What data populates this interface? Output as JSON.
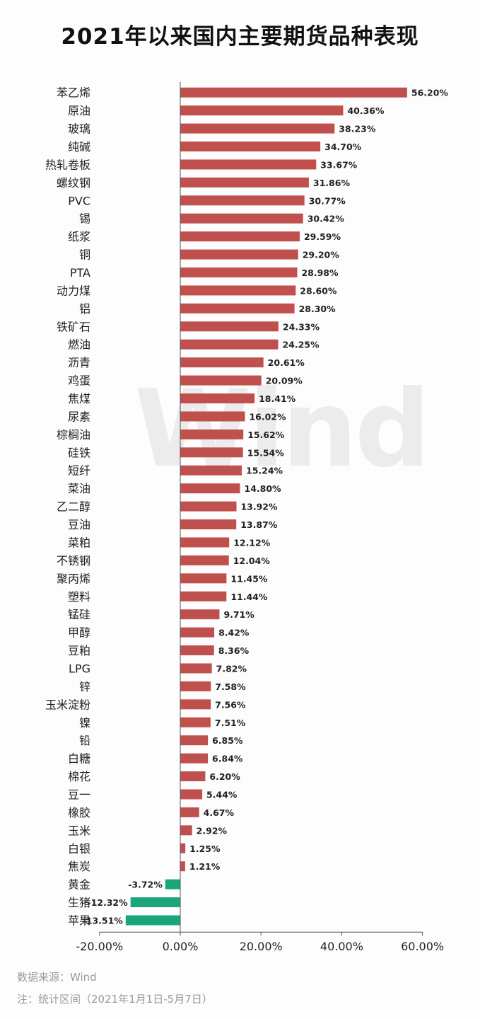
{
  "title": "2021年以来国内主要期货品种表现",
  "watermark": "Wind",
  "source_label": "数据来源：Wind",
  "note_label": "注：统计区间（2021年1月1日-5月7日）",
  "colors": {
    "positive": "#c0504d",
    "negative": "#1aa67a",
    "axis": "#555555",
    "text": "#222222"
  },
  "chart_data": {
    "type": "bar",
    "orientation": "horizontal",
    "title": "2021年以来国内主要期货品种表现",
    "xlabel": "",
    "ylabel": "",
    "xlim": [
      -20,
      60
    ],
    "xticks": [
      "-20.00%",
      "0.00%",
      "20.00%",
      "40.00%",
      "60.00%"
    ],
    "xtick_values": [
      -20,
      0,
      20,
      40,
      60
    ],
    "grid": false,
    "legend": "none",
    "categories": [
      "苯乙烯",
      "原油",
      "玻璃",
      "纯碱",
      "热轧卷板",
      "螺纹钢",
      "PVC",
      "锡",
      "纸浆",
      "铜",
      "PTA",
      "动力煤",
      "铝",
      "铁矿石",
      "燃油",
      "沥青",
      "鸡蛋",
      "焦煤",
      "尿素",
      "棕榈油",
      "硅铁",
      "短纤",
      "菜油",
      "乙二醇",
      "豆油",
      "菜粕",
      "不锈钢",
      "聚丙烯",
      "塑料",
      "锰硅",
      "甲醇",
      "豆粕",
      "LPG",
      "锌",
      "玉米淀粉",
      "镍",
      "铅",
      "白糖",
      "棉花",
      "豆一",
      "橡胶",
      "玉米",
      "白银",
      "焦炭",
      "黄金",
      "生猪",
      "苹果"
    ],
    "values": [
      56.2,
      40.36,
      38.23,
      34.7,
      33.67,
      31.86,
      30.77,
      30.42,
      29.59,
      29.2,
      28.98,
      28.6,
      28.3,
      24.33,
      24.25,
      20.61,
      20.09,
      18.41,
      16.02,
      15.62,
      15.54,
      15.24,
      14.8,
      13.92,
      13.87,
      12.12,
      12.04,
      11.45,
      11.44,
      9.71,
      8.42,
      8.36,
      7.82,
      7.58,
      7.56,
      7.51,
      6.85,
      6.84,
      6.2,
      5.44,
      4.67,
      2.92,
      1.25,
      1.21,
      -3.72,
      -12.32,
      -13.51
    ],
    "value_labels": [
      "56.20%",
      "40.36%",
      "38.23%",
      "34.70%",
      "33.67%",
      "31.86%",
      "30.77%",
      "30.42%",
      "29.59%",
      "29.20%",
      "28.98%",
      "28.60%",
      "28.30%",
      "24.33%",
      "24.25%",
      "20.61%",
      "20.09%",
      "18.41%",
      "16.02%",
      "15.62%",
      "15.54%",
      "15.24%",
      "14.80%",
      "13.92%",
      "13.87%",
      "12.12%",
      "12.04%",
      "11.45%",
      "11.44%",
      "9.71%",
      "8.42%",
      "8.36%",
      "7.82%",
      "7.58%",
      "7.56%",
      "7.51%",
      "6.85%",
      "6.84%",
      "6.20%",
      "5.44%",
      "4.67%",
      "2.92%",
      "1.25%",
      "1.21%",
      "-3.72%",
      "-12.32%",
      "-13.51%"
    ]
  }
}
